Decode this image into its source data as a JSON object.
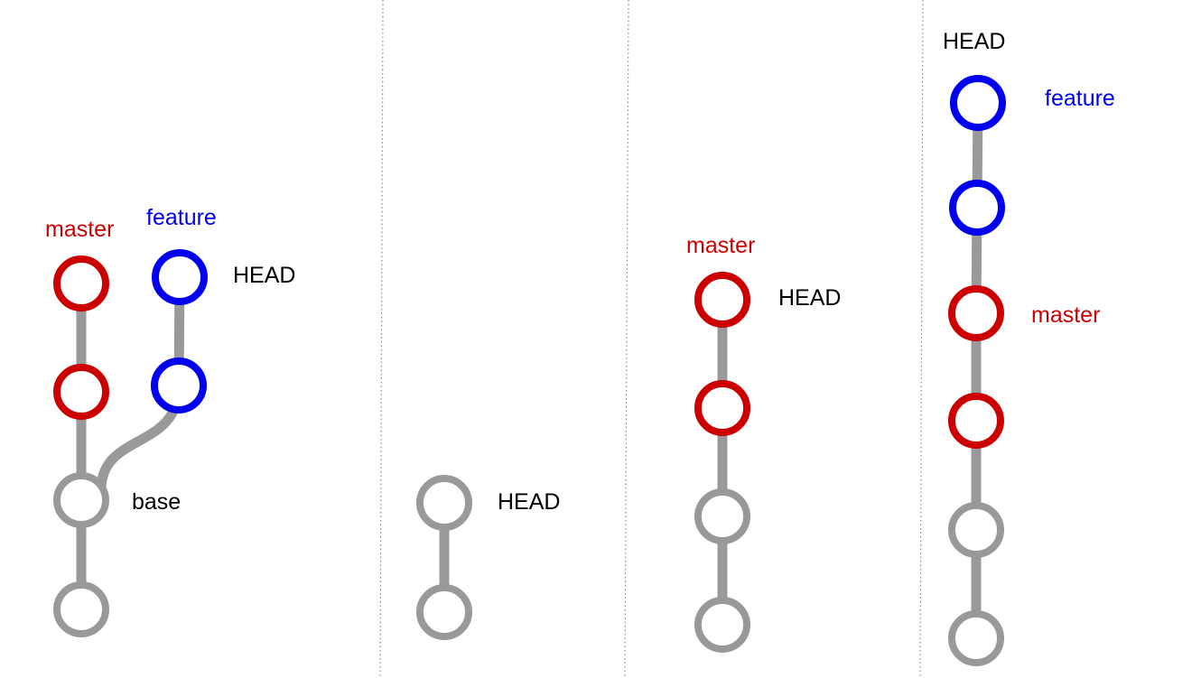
{
  "colors": {
    "master": "#cc0000",
    "feature": "#0000ee",
    "base": "#999999",
    "text": "#000000"
  },
  "panel1": {
    "master_label": "master",
    "feature_label": "feature",
    "head_label": "HEAD",
    "base_label": "base"
  },
  "panel2": {
    "head_label": "HEAD"
  },
  "panel3": {
    "master_label": "master",
    "head_label": "HEAD"
  },
  "panel4": {
    "head_label": "HEAD",
    "feature_label": "feature",
    "master_label": "master"
  }
}
